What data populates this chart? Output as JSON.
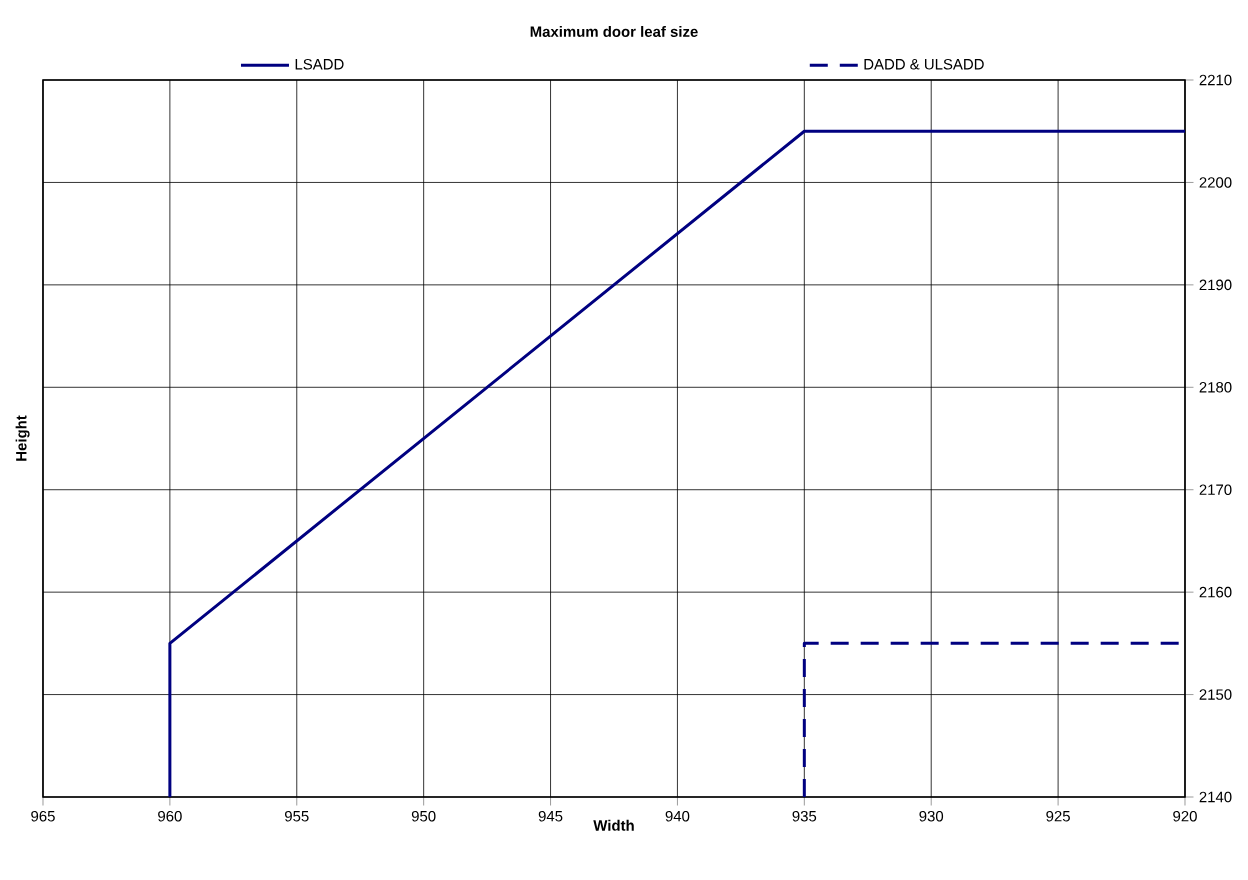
{
  "chart_data": {
    "type": "line",
    "title": "Maximum door leaf size",
    "xlabel": "Width",
    "ylabel": "Height",
    "series": [
      {
        "name": "LSADD",
        "color": "#000080",
        "line_style": "solid",
        "x": [
          960,
          960,
          935,
          920
        ],
        "values": [
          2140,
          2155,
          2205,
          2205
        ]
      },
      {
        "name": "DADD & ULSADD",
        "color": "#000080",
        "line_style": "dashed",
        "x": [
          935,
          935,
          920
        ],
        "values": [
          2140,
          2155,
          2155
        ]
      }
    ],
    "xlim": [
      965,
      920
    ],
    "ylim": [
      2140,
      2210
    ],
    "xticks": [
      965,
      960,
      955,
      950,
      945,
      940,
      935,
      930,
      925,
      920
    ],
    "yticks": [
      2140,
      2150,
      2160,
      2170,
      2180,
      2190,
      2200,
      2210
    ],
    "grid": true,
    "legend": "top",
    "marker": "none"
  }
}
